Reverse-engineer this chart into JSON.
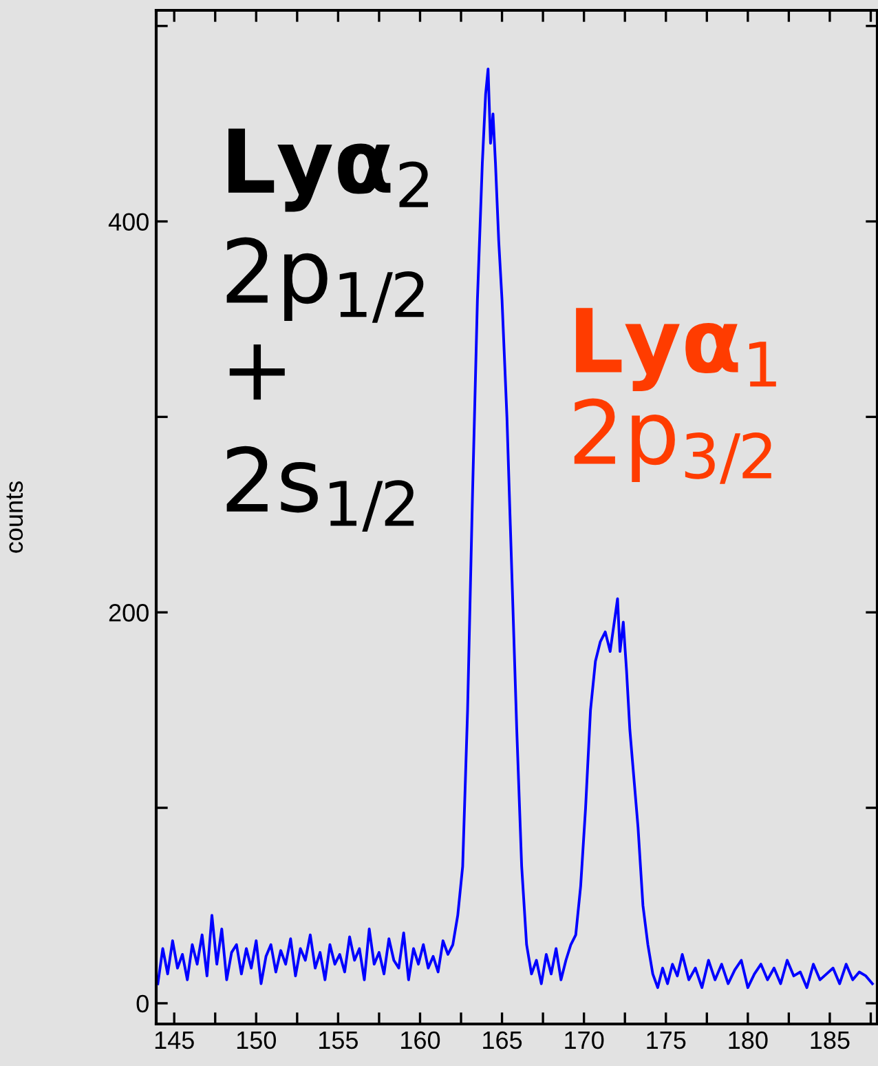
{
  "chart_data": {
    "type": "line",
    "ylabel": "counts",
    "annotations": [
      "Lyα$_{2}$",
      "2p$_{1/2}$",
      "+",
      "2s$_{1/2}$",
      "Lyα$_{1}$",
      "2p$_{3/2}$"
    ],
    "series": [
      {
        "color": "#0000ff",
        "x": [
          144.0,
          144.3,
          144.6,
          144.9,
          145.2,
          145.5,
          145.8,
          146.1,
          146.4,
          146.7,
          147.0,
          147.3,
          147.6,
          147.9,
          148.2,
          148.5,
          148.8,
          149.1,
          149.4,
          149.7,
          150.0,
          150.3,
          150.6,
          150.9,
          151.2,
          151.5,
          151.8,
          152.1,
          152.4,
          152.7,
          153.0,
          153.3,
          153.6,
          153.9,
          154.2,
          154.5,
          154.8,
          155.1,
          155.4,
          155.7,
          156.0,
          156.3,
          156.6,
          156.9,
          157.2,
          157.5,
          157.8,
          158.1,
          158.4,
          158.7,
          159.0,
          159.3,
          159.6,
          159.9,
          160.2,
          160.5,
          160.8,
          161.1,
          161.4,
          161.7,
          162.0,
          162.3,
          162.6,
          162.9,
          163.2,
          163.5,
          163.8,
          164.0,
          164.15,
          164.3,
          164.45,
          164.6,
          164.8,
          165.0,
          165.3,
          165.6,
          165.9,
          166.2,
          166.5,
          166.8,
          167.1,
          167.4,
          167.7,
          168.0,
          168.3,
          168.6,
          168.9,
          169.2,
          169.5,
          169.8,
          170.1,
          170.4,
          170.7,
          171.0,
          171.3,
          171.6,
          171.9,
          172.05,
          172.2,
          172.4,
          172.6,
          172.8,
          173.0,
          173.3,
          173.6,
          173.9,
          174.2,
          174.5,
          174.8,
          175.1,
          175.4,
          175.7,
          176.0,
          176.4,
          176.8,
          177.2,
          177.6,
          178.0,
          178.4,
          178.8,
          179.2,
          179.6,
          180.0,
          180.4,
          180.8,
          181.2,
          181.6,
          182.0,
          182.4,
          182.8,
          183.2,
          183.6,
          184.0,
          184.4,
          184.8,
          185.2,
          185.6,
          186.0,
          186.4,
          186.8,
          187.2,
          187.6
        ],
        "values": [
          10,
          28,
          15,
          32,
          18,
          25,
          12,
          30,
          20,
          35,
          14,
          45,
          20,
          38,
          12,
          26,
          30,
          15,
          28,
          18,
          32,
          10,
          24,
          30,
          16,
          27,
          20,
          33,
          14,
          28,
          22,
          35,
          18,
          26,
          12,
          30,
          20,
          25,
          16,
          34,
          22,
          28,
          12,
          38,
          20,
          26,
          15,
          33,
          22,
          18,
          36,
          12,
          28,
          20,
          30,
          18,
          24,
          16,
          32,
          25,
          30,
          45,
          70,
          150,
          260,
          360,
          430,
          465,
          478,
          440,
          455,
          430,
          390,
          360,
          300,
          220,
          140,
          70,
          30,
          15,
          22,
          10,
          25,
          15,
          28,
          12,
          22,
          30,
          35,
          60,
          100,
          150,
          175,
          185,
          190,
          180,
          198,
          207,
          180,
          195,
          170,
          140,
          120,
          90,
          50,
          30,
          15,
          8,
          18,
          10,
          20,
          14,
          25,
          12,
          18,
          8,
          22,
          12,
          20,
          10,
          17,
          22,
          8,
          15,
          20,
          12,
          18,
          10,
          22,
          14,
          16,
          8,
          20,
          12,
          15,
          18,
          10,
          20,
          12,
          16,
          14,
          10
        ]
      }
    ],
    "xlim": [
      143.9,
      187.9
    ],
    "ylim": [
      -10.6,
      508
    ],
    "xticks": [
      145,
      {
        "value": 147.5,
        "label": null
      },
      150,
      {
        "value": 152.5,
        "label": null
      },
      155,
      {
        "value": 157.5,
        "label": null
      },
      160,
      {
        "value": 162.5,
        "label": null
      },
      165,
      {
        "value": 167.5,
        "label": null
      },
      170,
      {
        "value": 172.5,
        "label": null
      },
      175,
      {
        "value": 177.5,
        "label": null
      },
      180,
      {
        "value": 182.5,
        "label": null
      },
      185,
      {
        "value": 187.5,
        "label": null
      }
    ],
    "yticks": [
      0,
      {
        "value": 100,
        "label": null
      },
      200,
      {
        "value": 300,
        "label": null
      },
      400,
      {
        "value": 500,
        "label": null
      }
    ],
    "grid": false,
    "legend": false
  }
}
